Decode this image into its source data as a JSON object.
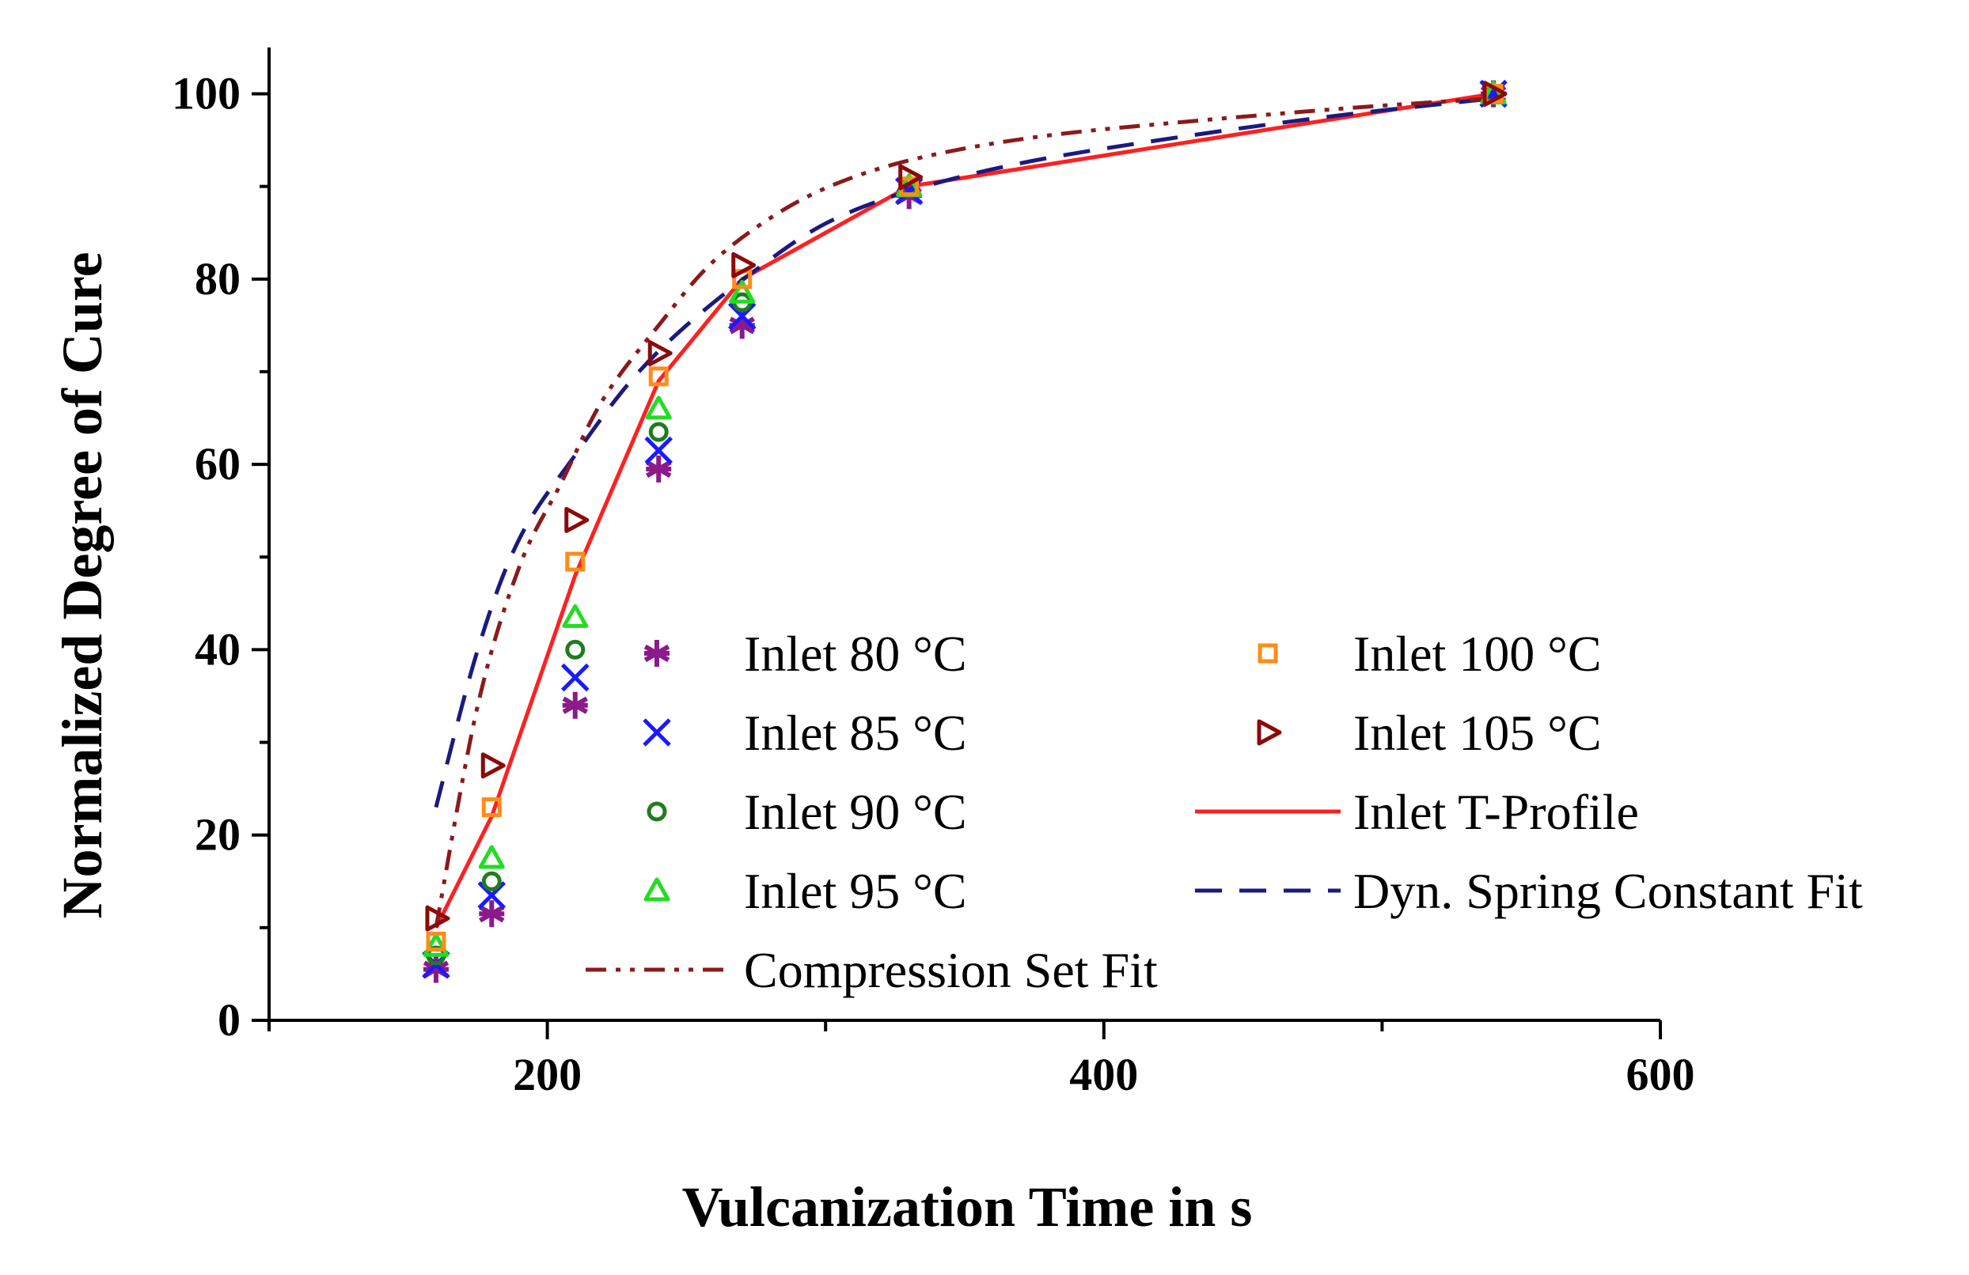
{
  "chart_data": {
    "type": "scatter",
    "title": "",
    "xlabel": "Vulcanization Time in s",
    "ylabel": "Normalized Degree of Cure",
    "xlim": [
      100,
      600
    ],
    "ylim": [
      0,
      105
    ],
    "x_ticks": [
      200,
      400,
      600
    ],
    "y_ticks": [
      0,
      20,
      40,
      60,
      80,
      100
    ],
    "x_minor_ticks": [
      100,
      300,
      500
    ],
    "y_minor_ticks": [
      10,
      30,
      50,
      70,
      90
    ],
    "x_tick_labels": [
      "200",
      "400",
      "600"
    ],
    "y_tick_labels": [
      "0",
      "20",
      "40",
      "60",
      "80",
      "100"
    ],
    "grid": false,
    "legend_position": "center-right",
    "x": [
      160,
      180,
      210,
      240,
      270,
      330,
      540
    ],
    "series": [
      {
        "name": "Inlet 80 °C",
        "marker": "asterisk",
        "color": "#8B1A8B",
        "values": [
          5.5,
          11.5,
          34,
          59.5,
          75,
          89,
          100
        ]
      },
      {
        "name": "Inlet 85 °C",
        "marker": "x",
        "color": "#1A1AFF",
        "values": [
          6,
          13.5,
          37,
          61.5,
          76,
          89.5,
          100
        ]
      },
      {
        "name": "Inlet 90 °C",
        "marker": "circle",
        "color": "#1E7D1E",
        "values": [
          7,
          15,
          40,
          63.5,
          77.5,
          90,
          100
        ]
      },
      {
        "name": "Inlet 95 °C",
        "marker": "triangle",
        "color": "#22DD22",
        "values": [
          8,
          17.5,
          43.5,
          66,
          78.5,
          90,
          100
        ]
      },
      {
        "name": "Inlet 100 °C",
        "marker": "square",
        "color": "#FF8C1A",
        "values": [
          8.5,
          23,
          49.5,
          69.5,
          80,
          90,
          100
        ]
      },
      {
        "name": "Inlet 105 °C",
        "marker": "triangle-right",
        "color": "#8B0A0A",
        "values": [
          11,
          27.5,
          54,
          72,
          81.5,
          91,
          100
        ]
      }
    ],
    "lines": [
      {
        "name": "Inlet T-Profile",
        "style": "solid",
        "color": "#FF2020",
        "x": [
          160,
          180,
          210,
          240,
          270,
          330,
          540
        ],
        "y": [
          10,
          22,
          48,
          69,
          80,
          90,
          100
        ]
      },
      {
        "name": "Dyn. Spring Constant Fit",
        "style": "dashed",
        "color": "#1A1A80",
        "x": [
          160,
          175,
          190,
          210,
          230,
          250,
          275,
          300,
          330,
          370,
          420,
          480,
          540
        ],
        "y": [
          23,
          40,
          52,
          61,
          69,
          75,
          81,
          86,
          89.5,
          92.5,
          95,
          97.5,
          99.5
        ]
      },
      {
        "name": "Compression Set Fit",
        "style": "dash-dot-dot",
        "color": "#8B1A1A",
        "x": [
          160,
          175,
          190,
          205,
          220,
          240,
          260,
          285,
          310,
          340,
          380,
          430,
          490,
          540
        ],
        "y": [
          10,
          34,
          49,
          58,
          67,
          75,
          82,
          87.5,
          91,
          93.5,
          95.5,
          97,
          98.5,
          99.5
        ]
      }
    ]
  }
}
